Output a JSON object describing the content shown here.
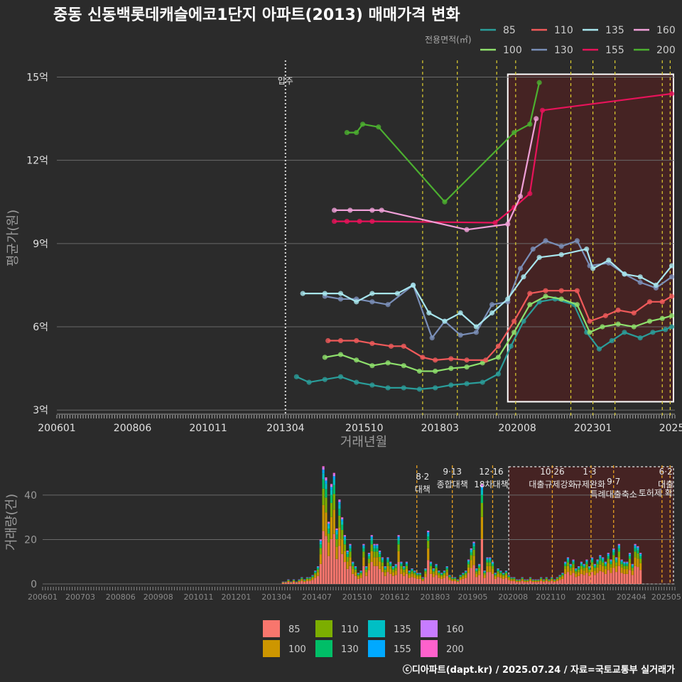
{
  "title": "중동 신동백롯데캐슬에코1단지 아파트(2013) 매매가격 변화",
  "credit": "ⓒ디아파트(dapt.kr) / 2025.07.24 / 자료=국토교통부 실거래가",
  "colors": {
    "background": "#2b2b2b",
    "highlight_fill": "#4a2222",
    "line_85": "#2a9d9a",
    "line_100": "#8ee06c",
    "line_110": "#f05a5a",
    "line_130": "#7a8fb8",
    "line_135": "#a8e6ee",
    "line_155": "#e8135a",
    "line_160": "#f0a0d8",
    "line_200": "#4cb030",
    "bar_85": "#f8766d",
    "bar_100": "#cd9600",
    "bar_110": "#7cae00",
    "bar_130": "#00be67",
    "bar_135": "#00bfc4",
    "bar_155": "#00a9ff",
    "bar_160": "#c77cff",
    "bar_200": "#ff61cc"
  },
  "top_chart": {
    "ylabel": "평균가(원)",
    "xlabel": "거래년월",
    "y_tick_labels": [
      "3억",
      "6억",
      "9억",
      "12억",
      "15억"
    ],
    "x_tick_labels": [
      "200601",
      "200806",
      "201011",
      "201304",
      "201510",
      "201803",
      "202008",
      "202301",
      "2025"
    ],
    "legend_title": "전용면적(㎡)",
    "legend_items": [
      "85",
      "110",
      "135",
      "160",
      "100",
      "130",
      "155",
      "200"
    ],
    "annotation": "입주"
  },
  "bottom_chart": {
    "ylabel": "거래량(건)",
    "y_tick_labels": [
      "0",
      "20",
      "40"
    ],
    "x_tick_labels": [
      "200601",
      "200703",
      "200806",
      "200908",
      "201011",
      "201201",
      "201304",
      "201407",
      "201510",
      "201612",
      "201803",
      "201905",
      "202008",
      "202110",
      "202301",
      "202404",
      "202505"
    ],
    "legend_items": [
      "85",
      "110",
      "135",
      "160",
      "100",
      "130",
      "155",
      "200"
    ],
    "policies": [
      {
        "date": "8·2",
        "label": "대책"
      },
      {
        "date": "9·13",
        "label": "종합대책"
      },
      {
        "date": "12·16",
        "label": "18차대책"
      },
      {
        "date": "10·26",
        "label": "대출규제강화"
      },
      {
        "date": "1·3",
        "label": "규제완화"
      },
      {
        "date": "9·7",
        "label": "특례대출축소"
      },
      {
        "date": "",
        "label": "토허제 확"
      },
      {
        "date": "6·2",
        "label": "대출"
      }
    ]
  },
  "chart_data": [
    {
      "type": "line",
      "title": "중동 신동백롯데캐슬에코1단지 아파트(2013) 매매가격 변화",
      "xlabel": "거래년월",
      "ylabel": "평균가(원)",
      "ylim": [
        2.8,
        15.6
      ],
      "y_unit": "억",
      "xlim": [
        2006.0,
        2025.6
      ],
      "grid": true,
      "legend_position": "top-right",
      "series": [
        {
          "name": "85",
          "points": [
            [
              2013.6,
              4.2
            ],
            [
              2014.0,
              4.0
            ],
            [
              2014.5,
              4.1
            ],
            [
              2015.0,
              4.2
            ],
            [
              2015.5,
              4.0
            ],
            [
              2016.0,
              3.9
            ],
            [
              2016.5,
              3.8
            ],
            [
              2017.0,
              3.8
            ],
            [
              2017.5,
              3.75
            ],
            [
              2018.0,
              3.8
            ],
            [
              2018.5,
              3.9
            ],
            [
              2019.0,
              3.95
            ],
            [
              2019.5,
              4.0
            ],
            [
              2020.0,
              4.3
            ],
            [
              2020.4,
              5.3
            ],
            [
              2020.8,
              6.2
            ],
            [
              2021.3,
              6.9
            ],
            [
              2021.8,
              7.0
            ],
            [
              2022.4,
              6.8
            ],
            [
              2022.8,
              5.8
            ],
            [
              2023.2,
              5.2
            ],
            [
              2023.6,
              5.5
            ],
            [
              2024.0,
              5.8
            ],
            [
              2024.5,
              5.6
            ],
            [
              2024.9,
              5.8
            ],
            [
              2025.3,
              5.9
            ],
            [
              2025.5,
              6.0
            ]
          ]
        },
        {
          "name": "100",
          "points": [
            [
              2014.5,
              4.9
            ],
            [
              2015.0,
              5.0
            ],
            [
              2015.5,
              4.8
            ],
            [
              2016.0,
              4.6
            ],
            [
              2016.5,
              4.7
            ],
            [
              2017.0,
              4.6
            ],
            [
              2017.5,
              4.4
            ],
            [
              2018.0,
              4.4
            ],
            [
              2018.5,
              4.5
            ],
            [
              2019.0,
              4.55
            ],
            [
              2019.5,
              4.7
            ],
            [
              2020.0,
              4.9
            ],
            [
              2020.5,
              5.8
            ],
            [
              2021.0,
              6.8
            ],
            [
              2021.5,
              7.1
            ],
            [
              2022.0,
              7.0
            ],
            [
              2022.5,
              6.8
            ],
            [
              2022.9,
              5.8
            ],
            [
              2023.3,
              6.0
            ],
            [
              2023.8,
              6.1
            ],
            [
              2024.3,
              6.0
            ],
            [
              2024.8,
              6.2
            ],
            [
              2025.2,
              6.3
            ],
            [
              2025.5,
              6.4
            ]
          ]
        },
        {
          "name": "110",
          "points": [
            [
              2014.6,
              5.5
            ],
            [
              2015.0,
              5.5
            ],
            [
              2015.5,
              5.5
            ],
            [
              2016.0,
              5.4
            ],
            [
              2016.6,
              5.3
            ],
            [
              2017.0,
              5.3
            ],
            [
              2017.6,
              4.9
            ],
            [
              2018.0,
              4.8
            ],
            [
              2018.5,
              4.85
            ],
            [
              2019.0,
              4.8
            ],
            [
              2019.6,
              4.8
            ],
            [
              2020.0,
              5.3
            ],
            [
              2020.5,
              6.2
            ],
            [
              2021.0,
              7.2
            ],
            [
              2021.5,
              7.3
            ],
            [
              2022.0,
              7.3
            ],
            [
              2022.5,
              7.3
            ],
            [
              2022.9,
              6.2
            ],
            [
              2023.4,
              6.4
            ],
            [
              2023.8,
              6.6
            ],
            [
              2024.3,
              6.5
            ],
            [
              2024.8,
              6.9
            ],
            [
              2025.2,
              6.9
            ],
            [
              2025.5,
              7.1
            ]
          ]
        },
        {
          "name": "130",
          "points": [
            [
              2014.5,
              7.1
            ],
            [
              2015.0,
              7.0
            ],
            [
              2015.5,
              7.0
            ],
            [
              2016.0,
              6.9
            ],
            [
              2016.5,
              6.8
            ],
            [
              2017.3,
              7.5
            ],
            [
              2017.9,
              5.6
            ],
            [
              2018.3,
              6.2
            ],
            [
              2018.8,
              5.7
            ],
            [
              2019.3,
              5.8
            ],
            [
              2019.8,
              6.8
            ],
            [
              2020.3,
              6.9
            ],
            [
              2020.7,
              8.1
            ],
            [
              2021.1,
              8.8
            ],
            [
              2021.5,
              9.1
            ],
            [
              2022.0,
              8.9
            ],
            [
              2022.5,
              9.1
            ],
            [
              2022.9,
              8.2
            ],
            [
              2023.5,
              8.3
            ],
            [
              2024.0,
              7.9
            ],
            [
              2024.5,
              7.6
            ],
            [
              2025.0,
              7.4
            ],
            [
              2025.5,
              7.8
            ]
          ]
        },
        {
          "name": "135",
          "points": [
            [
              2013.8,
              7.2
            ],
            [
              2014.5,
              7.2
            ],
            [
              2015.0,
              7.2
            ],
            [
              2015.5,
              6.9
            ],
            [
              2016.0,
              7.2
            ],
            [
              2016.8,
              7.2
            ],
            [
              2017.3,
              7.5
            ],
            [
              2017.8,
              6.5
            ],
            [
              2018.3,
              6.2
            ],
            [
              2018.8,
              6.5
            ],
            [
              2019.3,
              6.0
            ],
            [
              2019.8,
              6.5
            ],
            [
              2020.3,
              7.0
            ],
            [
              2020.8,
              7.8
            ],
            [
              2021.3,
              8.5
            ],
            [
              2022.0,
              8.6
            ],
            [
              2022.8,
              8.8
            ],
            [
              2023.0,
              8.1
            ],
            [
              2023.5,
              8.4
            ],
            [
              2024.0,
              7.9
            ],
            [
              2024.5,
              7.8
            ],
            [
              2025.0,
              7.5
            ],
            [
              2025.5,
              8.2
            ]
          ]
        },
        {
          "name": "155",
          "points": [
            [
              2014.8,
              9.8
            ],
            [
              2015.2,
              9.8
            ],
            [
              2015.6,
              9.8
            ],
            [
              2016.0,
              9.8
            ],
            [
              2019.9,
              9.75
            ],
            [
              2020.5,
              10.3
            ],
            [
              2021.0,
              10.8
            ],
            [
              2021.4,
              13.8
            ],
            [
              2025.5,
              14.4
            ]
          ]
        },
        {
          "name": "160",
          "points": [
            [
              2014.8,
              10.2
            ],
            [
              2015.3,
              10.2
            ],
            [
              2016.0,
              10.2
            ],
            [
              2016.3,
              10.2
            ],
            [
              2019.0,
              9.5
            ],
            [
              2020.3,
              9.7
            ],
            [
              2020.7,
              10.7
            ],
            [
              2021.2,
              13.5
            ]
          ]
        },
        {
          "name": "200",
          "points": [
            [
              2015.2,
              13.0
            ],
            [
              2015.5,
              13.0
            ],
            [
              2015.7,
              13.3
            ],
            [
              2016.2,
              13.2
            ],
            [
              2018.3,
              10.5
            ],
            [
              2020.5,
              13.0
            ],
            [
              2021.0,
              13.3
            ],
            [
              2021.3,
              14.8
            ]
          ]
        }
      ]
    },
    {
      "type": "bar",
      "title": "",
      "xlabel": "",
      "ylabel": "거래량(건)",
      "ylim": [
        0,
        55
      ],
      "stacked": true,
      "series_names": [
        "85",
        "100",
        "110",
        "130",
        "135",
        "155",
        "160",
        "200"
      ],
      "monthly_totals_start": "2013-06",
      "monthly_totals": [
        1,
        1,
        2,
        1,
        2,
        1,
        2,
        3,
        2,
        3,
        3,
        4,
        6,
        8,
        20,
        53,
        48,
        28,
        45,
        50,
        25,
        38,
        30,
        22,
        15,
        18,
        10,
        8,
        5,
        6,
        18,
        8,
        14,
        22,
        18,
        18,
        15,
        12,
        8,
        12,
        10,
        8,
        9,
        22,
        10,
        8,
        10,
        6,
        7,
        6,
        5,
        5,
        3,
        7,
        24,
        10,
        7,
        9,
        6,
        5,
        6,
        8,
        4,
        3,
        3,
        2,
        4,
        5,
        6,
        11,
        16,
        19,
        7,
        9,
        45,
        6,
        12,
        12,
        10,
        5,
        7,
        6,
        5,
        6,
        4,
        3,
        3,
        2,
        2,
        3,
        2,
        2,
        3,
        2,
        2,
        2,
        3,
        2,
        3,
        2,
        3,
        2,
        3,
        4,
        5,
        10,
        12,
        9,
        11,
        7,
        8,
        10,
        9,
        11,
        8,
        12,
        9,
        11,
        13,
        12,
        10,
        14,
        11,
        16,
        12,
        18,
        11,
        10,
        10,
        14,
        9,
        18,
        17,
        14
      ]
    }
  ]
}
